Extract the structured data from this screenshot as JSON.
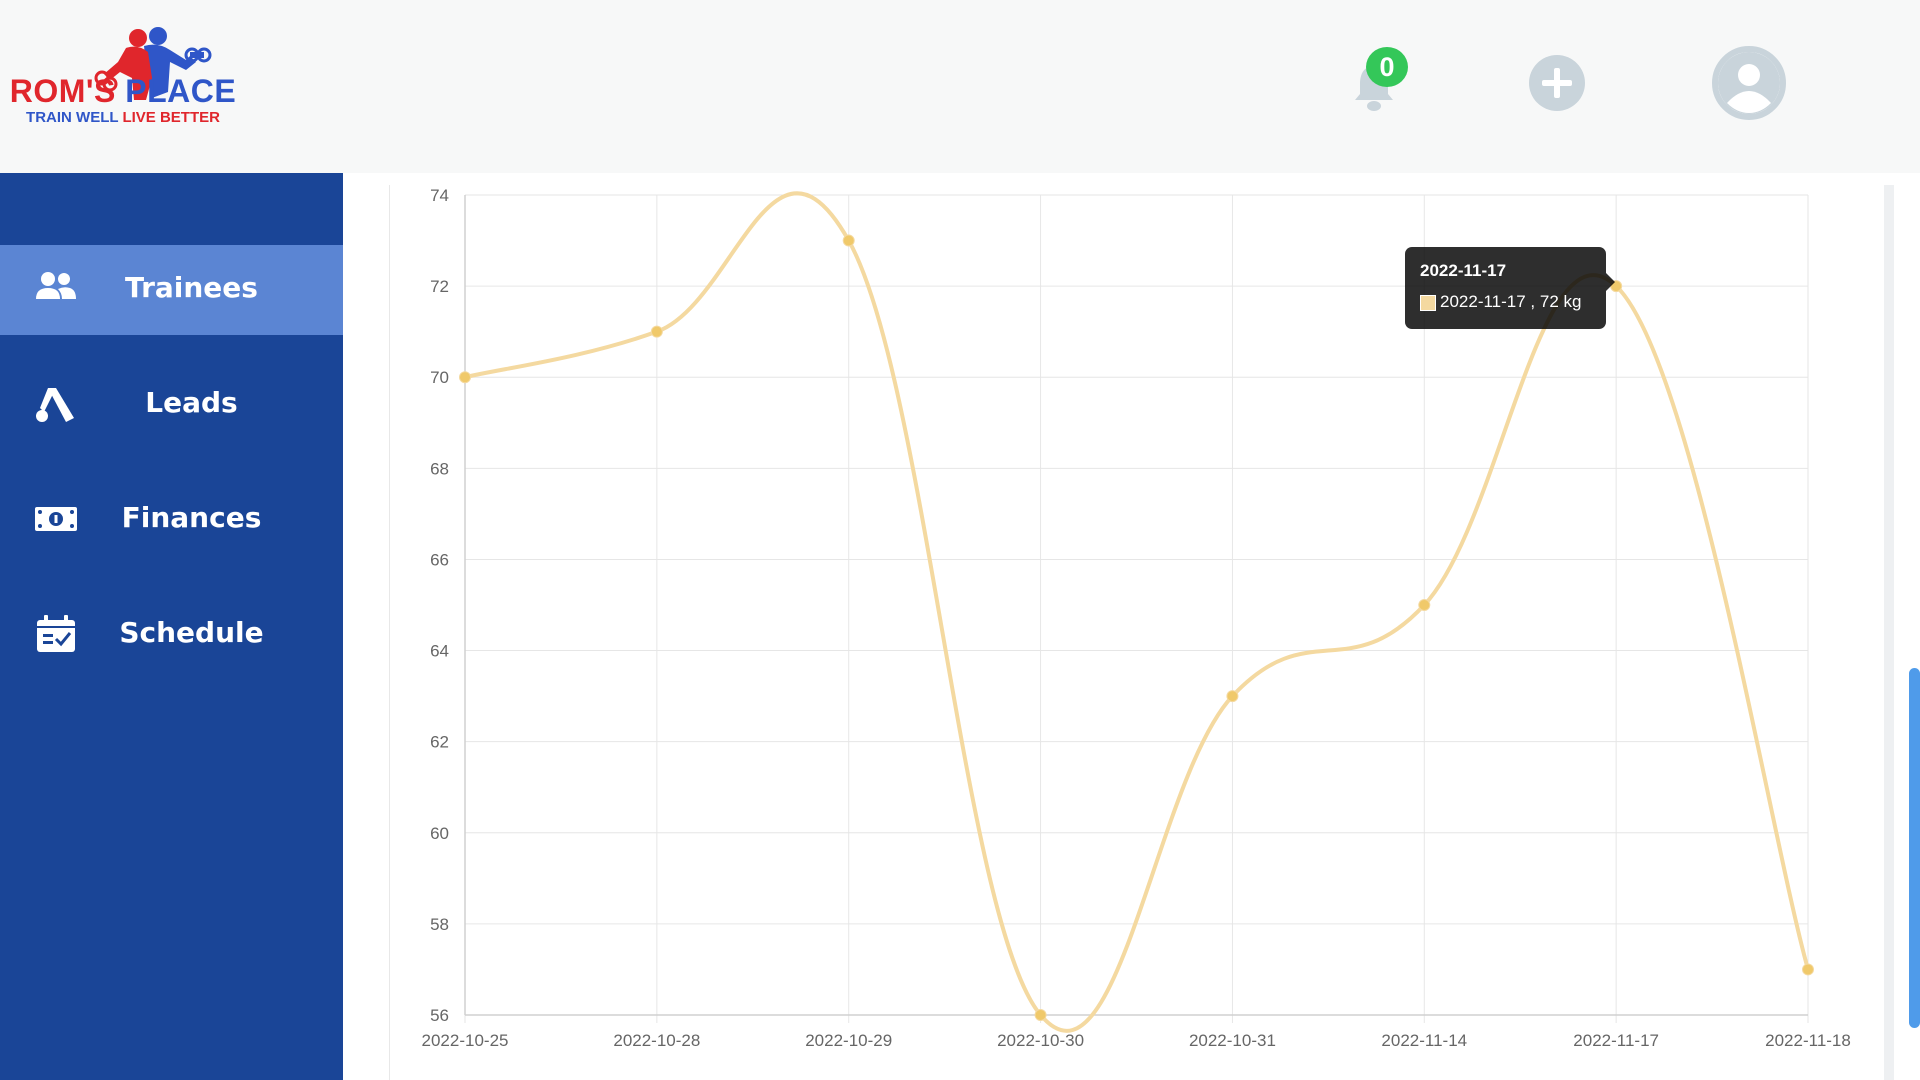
{
  "app": {
    "logo_title_part1": "ROM'S",
    "logo_title_part2": "PLACE",
    "logo_sub_part1": "TRAIN WELL",
    "logo_sub_part2": "LIVE BETTER"
  },
  "header": {
    "notification_count": "0",
    "icons": [
      "bell-icon",
      "plus-circle-icon",
      "user-avatar-icon"
    ]
  },
  "sidebar": {
    "items": [
      {
        "label": "Trainees",
        "icon": "users-icon",
        "active": true
      },
      {
        "label": "Leads",
        "icon": "leads-icon",
        "active": false
      },
      {
        "label": "Finances",
        "icon": "money-icon",
        "active": false
      },
      {
        "label": "Schedule",
        "icon": "calendar-check-icon",
        "active": false
      }
    ]
  },
  "colors": {
    "sidebar": "#1a4597",
    "sidebar_active": "#5b85d3",
    "line": "#f4d9a0",
    "point": "#f0c96a",
    "badge": "#34c759"
  },
  "chart_data": {
    "type": "line",
    "categories": [
      "2022-10-25",
      "2022-10-28",
      "2022-10-29",
      "2022-10-30",
      "2022-10-31",
      "2022-11-14",
      "2022-11-17",
      "2022-11-18"
    ],
    "series": [
      {
        "values": [
          70,
          71,
          73,
          56,
          63,
          65,
          72,
          57
        ]
      }
    ],
    "ylim": [
      56,
      74
    ],
    "yticks": [
      56,
      58,
      60,
      62,
      64,
      66,
      68,
      70,
      72,
      74
    ],
    "grid": true,
    "legend": "none"
  },
  "tooltip": {
    "title": "2022-11-17",
    "body": "2022-11-17 , 72 kg"
  }
}
